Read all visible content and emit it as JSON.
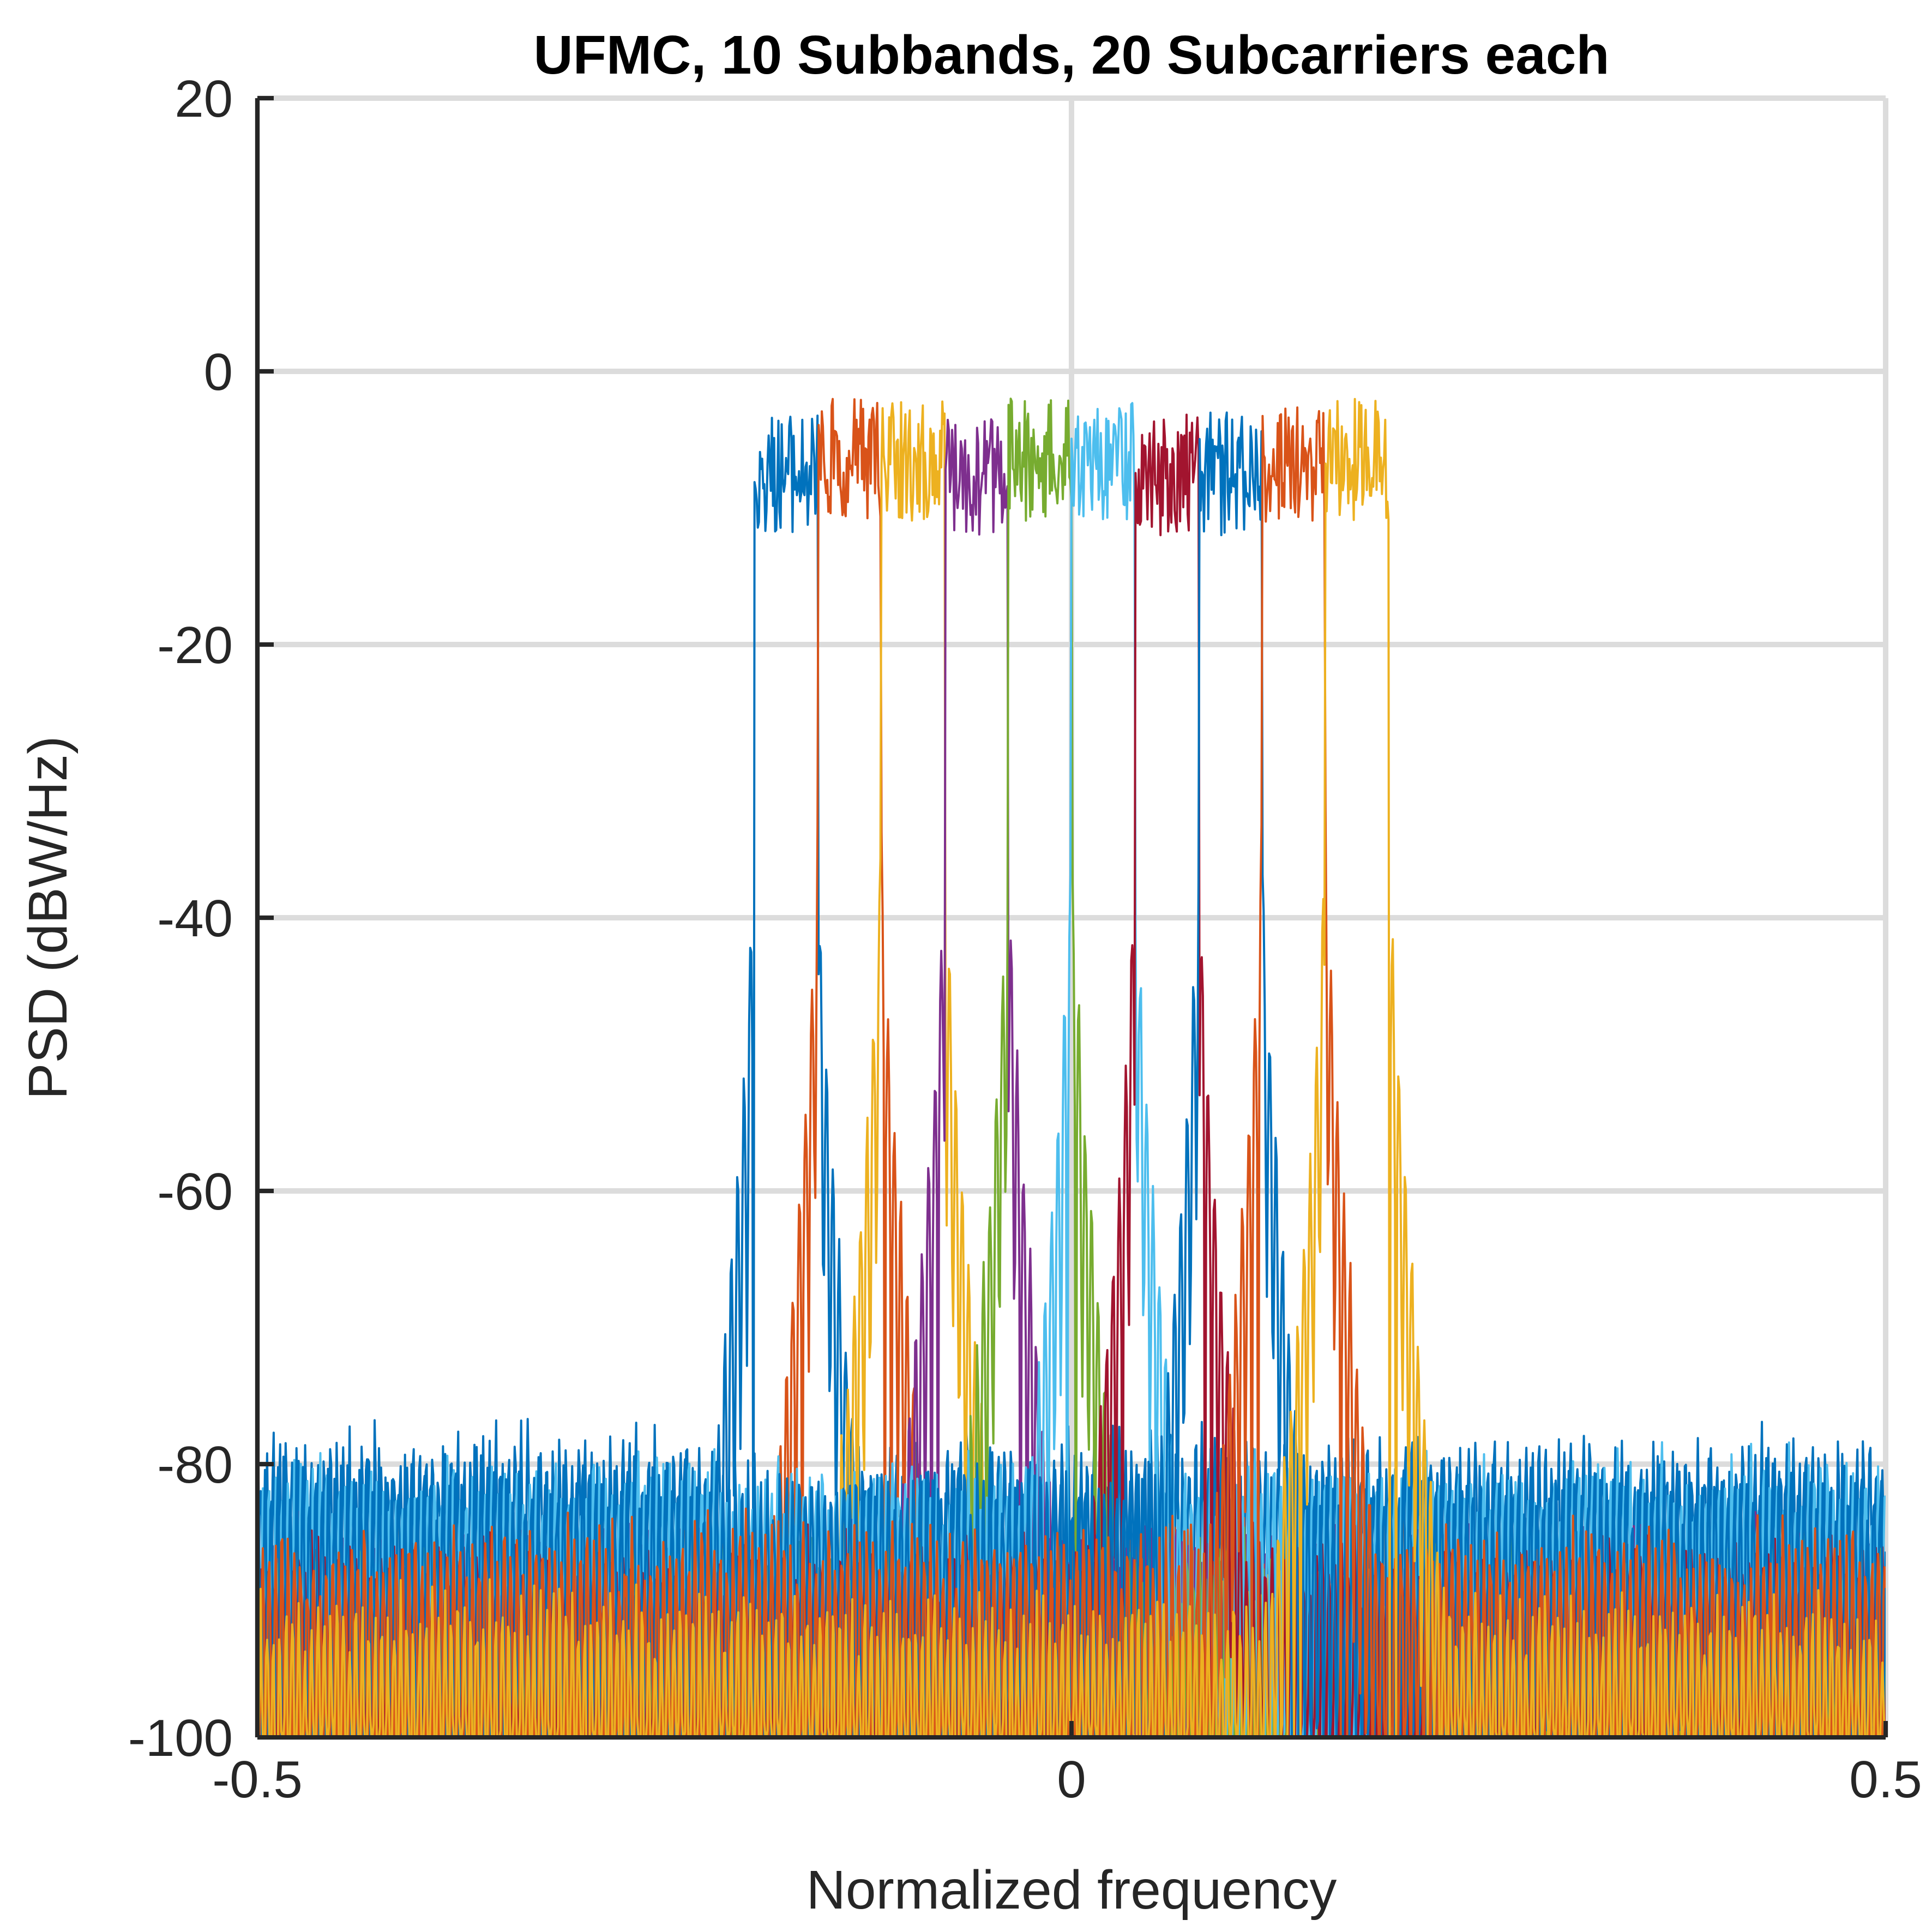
{
  "chart_data": {
    "type": "line",
    "title": "UFMC, 10 Subbands, 20 Subcarriers each",
    "xlabel": "Normalized frequency",
    "ylabel": "PSD (dBW/Hz)",
    "xlim": [
      -0.5,
      0.5
    ],
    "ylim": [
      -100,
      20
    ],
    "xticks": [
      -0.5,
      0,
      0.5
    ],
    "xtick_labels": [
      "-0.5",
      "0",
      "0.5"
    ],
    "yticks": [
      -100,
      -80,
      -60,
      -40,
      -20,
      0,
      20
    ],
    "ytick_labels": [
      "-100",
      "-80",
      "-60",
      "-40",
      "-20",
      "0",
      "20"
    ],
    "grid": true,
    "series": [
      {
        "color": "#0072BD",
        "band_start": -0.195,
        "band_end": -0.156,
        "passband_db": -3,
        "sidelobe_floor_db": -78
      },
      {
        "color": "#D95319",
        "band_start": -0.156,
        "band_end": -0.117,
        "passband_db": -2,
        "sidelobe_floor_db": -85
      },
      {
        "color": "#EDB120",
        "band_start": -0.117,
        "band_end": -0.078,
        "passband_db": -2,
        "sidelobe_floor_db": -88
      },
      {
        "color": "#7E2F8E",
        "band_start": -0.078,
        "band_end": -0.039,
        "passband_db": -3,
        "sidelobe_floor_db": -85
      },
      {
        "color": "#77AC30",
        "band_start": -0.039,
        "band_end": 0.0,
        "passband_db": -2,
        "sidelobe_floor_db": -86
      },
      {
        "color": "#4DBEEE",
        "band_start": 0.0,
        "band_end": 0.039,
        "passband_db": -2,
        "sidelobe_floor_db": -80
      },
      {
        "color": "#A2142F",
        "band_start": 0.039,
        "band_end": 0.078,
        "passband_db": -3,
        "sidelobe_floor_db": -86
      },
      {
        "color": "#0072BD",
        "band_start": 0.078,
        "band_end": 0.117,
        "passband_db": -3,
        "sidelobe_floor_db": -80
      },
      {
        "color": "#D95319",
        "band_start": 0.117,
        "band_end": 0.156,
        "passband_db": -2,
        "sidelobe_floor_db": -85
      },
      {
        "color": "#EDB120",
        "band_start": 0.156,
        "band_end": 0.195,
        "passband_db": -2,
        "sidelobe_floor_db": -90
      }
    ]
  }
}
